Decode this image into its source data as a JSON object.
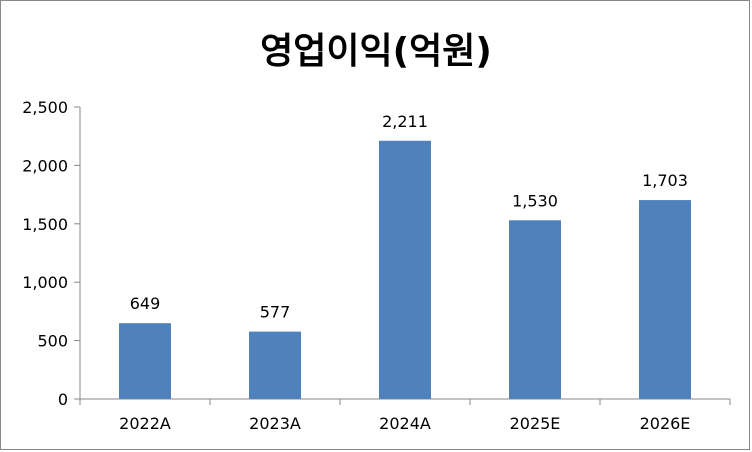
{
  "chart_data": {
    "type": "bar",
    "title": "영업이익(억원)",
    "categories": [
      "2022A",
      "2023A",
      "2024A",
      "2025E",
      "2026E"
    ],
    "values": [
      649,
      577,
      2211,
      1530,
      1703
    ],
    "data_labels": [
      "649",
      "577",
      "2,211",
      "1,530",
      "1,703"
    ],
    "y_ticks": [
      0,
      500,
      1000,
      1500,
      2000,
      2500
    ],
    "y_tick_labels": [
      "0",
      "500",
      "1,000",
      "1,500",
      "2,000",
      "2,500"
    ],
    "ylim": [
      0,
      2500
    ],
    "grid": false,
    "legend": "none",
    "bar_color": "#4F81BD"
  }
}
